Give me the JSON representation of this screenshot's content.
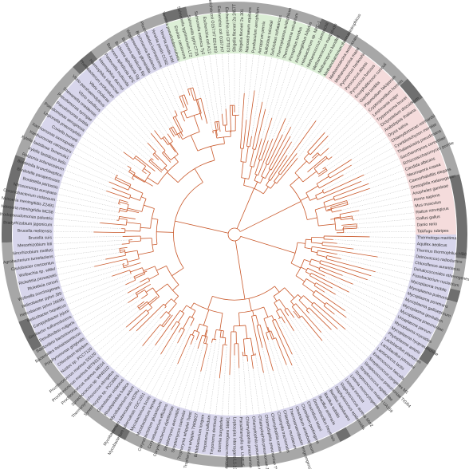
{
  "colors": {
    "bacteria": "#d8d6ec",
    "eukarya": "#f5dcdc",
    "archaea": "#dcefd6",
    "branch": "#c9582a",
    "ring_light": "#a7a7a7",
    "ring_dark": "#6f6f6f",
    "leader": "#9a9a9a"
  },
  "sectors": [
    {
      "name": "bacteria",
      "start": 0,
      "end": 252
    },
    {
      "name": "archaea",
      "start": 252,
      "end": 300
    },
    {
      "name": "eukarya",
      "start": 300,
      "end": 360
    }
  ],
  "leaves": [
    "Thermotoga maritima",
    "Aquifex aeolicus",
    "Thermus thermophilus HB8",
    "Deinococcus radiodurans",
    "Chloroflexus aurantiacus",
    "Dehalococcoides ethenogenes",
    "Fusobacterium nucleatum",
    "Mycoplasma mobile",
    "Mycoplasma pulmonis",
    "Mycoplasma penetrans",
    "Mycoplasma gallisepticum",
    "Mycoplasma genitalium",
    "Mycoplasma pneumoniae",
    "Ureaplasma parvum",
    "Mycoplasma mycoides",
    "Mycoplasma hyopneumoniae",
    "Phytoplasma asteris",
    "Lactobacillus plantarum",
    "Lactobacillus johnsonii",
    "Lactococcus lactis",
    "Enterococcus faecalis",
    "Streptococcus pyogenes M1",
    "Streptococcus pneumoniae TIGR4",
    "Streptococcus agalactiae",
    "Streptococcus mutans UA159",
    "Listeria monocytogenes",
    "Listeria innocua",
    "Staphylococcus aureus MW2",
    "Staphylococcus epidermidis",
    "Bacillus halodurans",
    "Bacillus subtilis",
    "Bacillus anthracis",
    "Oceanobacillus iheyensis",
    "Clostridium tetani",
    "Clostridium perfringens",
    "Clostridium acetobutylicum",
    "Thermoanaerobacter tengcongensis",
    "Chlamydia muridarum",
    "Chlamydia trachomatis",
    "Chlamydophila caviae",
    "Chlamydophila pneumoniae TW183",
    "Chlamydophila pneumoniae J138",
    "Chlamydophila pneumoniae CWL029",
    "Chlamydophila pneumoniae AR39",
    "Parachlamydia sp. UWE25",
    "Leptospira interrogans L1-130",
    "Leptospira interrogans 56601",
    "Borrelia burgdorferi",
    "Treponema denticola",
    "Treponema pallidum",
    "Bifidobacterium longum",
    "Tropheryma whipplei TW08/27",
    "Tropheryma whipplei Twist",
    "Streptomyces coelicolor",
    "Streptomyces avermitilis",
    "Corynebacterium diphtheriae",
    "Corynebacterium efficiens",
    "Corynebacterium glutamicum",
    "Mycobacterium leprae",
    "Mycobacterium bovis",
    "Mycobacterium tuberculosis CDC1551",
    "Mycobacterium tuberculosis H37Rv",
    "Mycobacterium avium",
    "Rhodopirellula baltica",
    "Gloeobacter violaceus",
    "Synechocystis sp. PCC6803",
    "Thermosynechococcus elongatus",
    "Synechococcus sp. WH8102",
    "Prochlorococcus marinus MED4",
    "Prochlorococcus marinus MIT9313",
    "Prochlorococcus marinus SS120",
    "Nostoc sp. PCC7120",
    "Chlorobium tepidum",
    "Porphyromonas gingivalis",
    "Bacteroides thetaiotaomicron",
    "Bdellovibrio bacteriovorus",
    "Desulfovibrio vulgaris",
    "Geobacter sulfurreducens",
    "Campylobacter jejuni",
    "Helicobacter hepaticus",
    "Helicobacter pylori 26695",
    "Helicobacter pylori J99",
    "Wolinella succinogenes",
    "Rickettsia conorii",
    "Rickettsia prowazekii",
    "Wolbachia sp. wMel",
    "Caulobacter crescentus",
    "Agrobacterium tumefaciens",
    "Sinorhizobium meliloti",
    "Mesorhizobium loti",
    "Brucella suis",
    "Brucella melitensis",
    "Bradyrhizobium japonicum",
    "Rhodopseudomonas palustris",
    "Neisseria meningitidis MC58",
    "Neisseria meningitidis Z2491",
    "Chromobacterium violaceum",
    "Nitrosomonas europaea",
    "Bordetella pertussis",
    "Bordetella parapertussis",
    "Bordetella bronchiseptica",
    "Ralstonia solanacearum",
    "Xylella fastidiosa 9a5c",
    "Xylella fastidiosa Temecula1",
    "Xanthomonas campestris",
    "Xanthomonas axonopodis",
    "Coxiella burnetii",
    "Legionella pneumophila",
    "Pseudomonas aeruginosa",
    "Pseudomonas putida",
    "Pseudomonas syringae",
    "Shewanella oneidensis",
    "Vibrio vulnificus",
    "Vibrio parahaemolyticus",
    "Vibrio cholerae",
    "Photobacterium profundum",
    "Haemophilus influenzae",
    "Haemophilus ducreyi",
    "Pasteurella multocida",
    "Buchnera aphidicola APS",
    "Buchnera aphidicola Sg",
    "Buchnera aphidicola Bp",
    "Wigglesworthia glossinidia",
    "Blochmannia floridanus",
    "Photorhabdus luminescens",
    "Yersinia pestis CO92",
    "Yersinia pestis KIM",
    "Yersinia pseudotuberculosis",
    "Erwinia carotovora",
    "Salmonella typhimurium LT2",
    "Salmonella typhi CT18",
    "Salmonella enterica Ty2",
    "Escherichia coli K12",
    "Escherichia coli O157:H7 EDL933",
    "Escherichia coli O157:H7",
    "Escherichia coli CFT073",
    "Shigella flexneri 2a 2457T",
    "Shigella flexneri 2a 301",
    "Nanoarchaeum equitans",
    "Pyrobaculum aerophilum",
    "Aeropyrum pernix",
    "Sulfolobus tokodaii",
    "Sulfolobus solfataricus",
    "Thermoplasma acidophilum",
    "Thermoplasma volcanium",
    "Picrophilus torridus",
    "Archaeoglobus fulgidus",
    "Halobacterium sp. NRC-1",
    "Methanococcus jannaschii",
    "Methanococcus maripaludis",
    "Methanopyrus kandleri",
    "Methanobacterium thermautotrophicus",
    "Methanosarcina acetivorans",
    "Methanosarcina mazei",
    "Pyrococcus horikoshii",
    "Pyrococcus abyssi",
    "Pyrococcus furiosus",
    "Encephalitozoon cuniculi",
    "Giardia lamblia",
    "Plasmodium falciparum",
    "Cryptosporidium hominis",
    "Leishmania major",
    "Trypanosoma brucei",
    "Dictyostelium discoideum",
    "Arabidopsis thaliana",
    "Oryza sativa",
    "Chlamydomonas reinhardtii",
    "Cyanidioschyzon merolae",
    "Thalassiosira pseudonana",
    "Saccharomyces cerevisiae",
    "Schizosaccharomyces pombe",
    "Candida albicans",
    "Neurospora crassa",
    "Caenorhabditis elegans",
    "Drosophila melanogaster",
    "Anopheles gambiae",
    "Homo sapiens",
    "Mus musculus",
    "Rattus norvegicus",
    "Gallus gallus",
    "Danio rerio",
    "Takifugu rubripes"
  ],
  "outer_ring": [
    {
      "start": 0,
      "end": 6,
      "tone": "dark"
    },
    {
      "start": 6,
      "end": 14,
      "tone": "light"
    },
    {
      "start": 14,
      "end": 17,
      "tone": "dark"
    },
    {
      "start": 17,
      "end": 30,
      "tone": "light"
    },
    {
      "start": 30,
      "end": 34,
      "tone": "dark"
    },
    {
      "start": 34,
      "end": 60,
      "tone": "light"
    },
    {
      "start": 60,
      "end": 63,
      "tone": "dark"
    },
    {
      "start": 63,
      "end": 88,
      "tone": "light"
    },
    {
      "start": 88,
      "end": 92,
      "tone": "dark"
    },
    {
      "start": 92,
      "end": 118,
      "tone": "light"
    },
    {
      "start": 118,
      "end": 122,
      "tone": "dark"
    },
    {
      "start": 122,
      "end": 150,
      "tone": "light"
    },
    {
      "start": 150,
      "end": 158,
      "tone": "dark"
    },
    {
      "start": 158,
      "end": 178,
      "tone": "light"
    },
    {
      "start": 178,
      "end": 200,
      "tone": "dark"
    },
    {
      "start": 200,
      "end": 226,
      "tone": "light"
    },
    {
      "start": 226,
      "end": 232,
      "tone": "dark"
    },
    {
      "start": 232,
      "end": 252,
      "tone": "light"
    },
    {
      "start": 252,
      "end": 258,
      "tone": "dark"
    },
    {
      "start": 258,
      "end": 292,
      "tone": "light"
    },
    {
      "start": 292,
      "end": 300,
      "tone": "dark"
    },
    {
      "start": 300,
      "end": 318,
      "tone": "light"
    },
    {
      "start": 318,
      "end": 324,
      "tone": "dark"
    },
    {
      "start": 324,
      "end": 345,
      "tone": "light"
    },
    {
      "start": 345,
      "end": 360,
      "tone": "dark"
    }
  ]
}
